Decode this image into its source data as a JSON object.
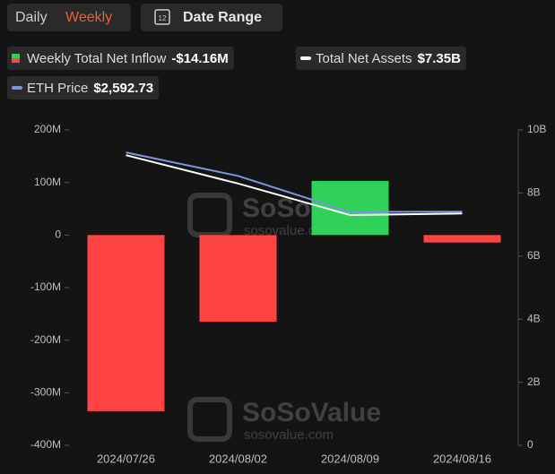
{
  "ui": {
    "tabs": [
      "Daily",
      "Weekly"
    ],
    "active_tab": 1,
    "date_icon": "12",
    "date_range": "Date Range",
    "watermark": {
      "brand": "SoSoValue",
      "site": "sosovalue.com"
    }
  },
  "chart_data": {
    "type": "bar",
    "categories": [
      "2024/07/26",
      "2024/08/02",
      "2024/08/09",
      "2024/08/16"
    ],
    "series": [
      {
        "name": "Weekly Total Net Inflow",
        "legend_value": "-$14.16M",
        "type": "bar",
        "color": "#ff4444",
        "positive_color": "#2fd158",
        "values": [
          -335,
          -165,
          103,
          -14.16
        ]
      },
      {
        "name": "Total Net Assets",
        "legend_value": "$7.35B",
        "type": "line",
        "axis": "y2",
        "color": "#ffffff",
        "values": [
          9.2,
          8.3,
          7.3,
          7.35
        ]
      },
      {
        "name": "ETH Price",
        "legend_value": "$2,592.73",
        "type": "line",
        "axis": "y3",
        "color": "#7f93e0",
        "values": [
          3250,
          2990,
          2590,
          2592.73
        ]
      }
    ],
    "ylim": [
      -400,
      200
    ],
    "yticks": [
      {
        "value": -400,
        "label": "-400M"
      },
      {
        "value": -300,
        "label": "-300M"
      },
      {
        "value": -200,
        "label": "-200M"
      },
      {
        "value": -100,
        "label": "-100M"
      },
      0,
      {
        "value": 100,
        "label": "100M"
      },
      {
        "value": 200,
        "label": "200M"
      }
    ],
    "y2lim": [
      0,
      10
    ],
    "y2ticks": [
      0,
      {
        "value": 2,
        "label": "2B"
      },
      {
        "value": 4,
        "label": "4B"
      },
      {
        "value": 6,
        "label": "6B"
      },
      {
        "value": 8,
        "label": "8B"
      },
      {
        "value": 10,
        "label": "10B"
      }
    ],
    "y3lim": [
      0,
      3500
    ]
  }
}
